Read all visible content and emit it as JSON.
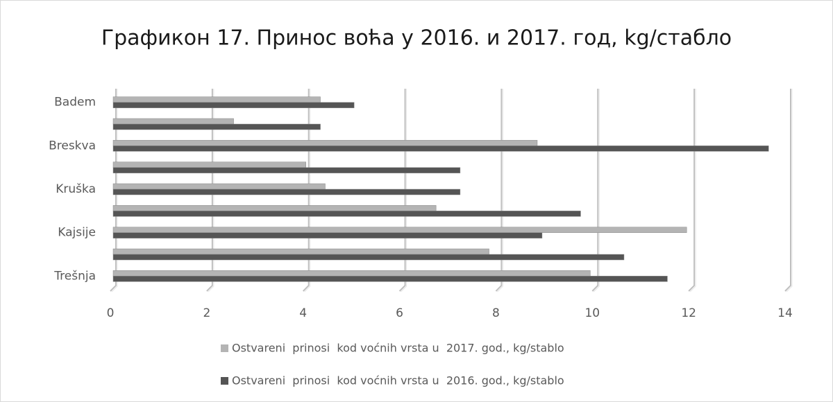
{
  "chart_data": {
    "type": "bar",
    "orientation": "horizontal",
    "title": "Графикон 17. Принос воћа у 2016. и 2017. год, kg/стабло",
    "categories": [
      "Badem",
      null,
      "Breskva",
      null,
      "Kruška",
      null,
      "Kajsije",
      null,
      "Trešnja"
    ],
    "series": [
      {
        "name": "Ostvareni  prinosi  kod voćnih vrsta u  2017. god., kg/stablo",
        "color": "#b4b4b4",
        "values": [
          4.3,
          2.5,
          8.8,
          4.0,
          4.4,
          6.7,
          11.9,
          7.8,
          9.9
        ]
      },
      {
        "name": "Ostvareni  prinosi  kod voćnih vrsta u  2016. god., kg/stablo",
        "color": "#555555",
        "values": [
          5.0,
          4.3,
          13.6,
          7.2,
          7.2,
          9.7,
          8.9,
          10.6,
          11.5
        ]
      }
    ],
    "xlim": [
      0,
      14
    ],
    "xticks": [
      0,
      2,
      4,
      6,
      8,
      10,
      12,
      14
    ],
    "grid": true,
    "legend": "bottom"
  }
}
